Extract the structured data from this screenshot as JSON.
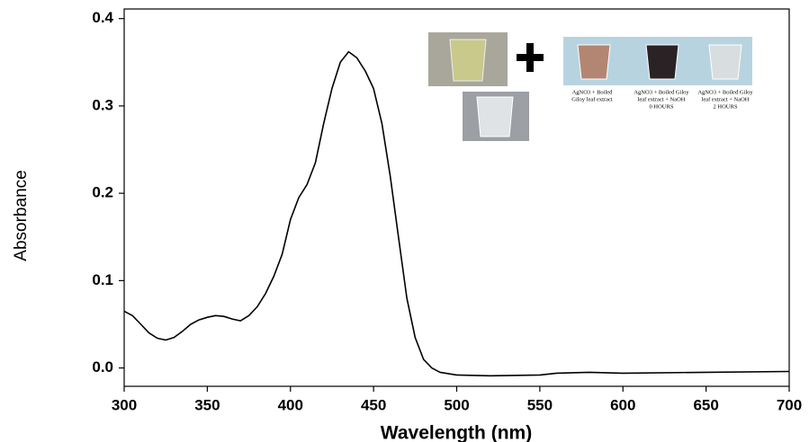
{
  "chart_data": {
    "type": "line",
    "x_label": "Wavelength (nm)",
    "y_label": "Absorbance",
    "x": [
      300,
      305,
      310,
      315,
      320,
      325,
      330,
      335,
      340,
      345,
      350,
      355,
      360,
      365,
      370,
      375,
      380,
      385,
      390,
      395,
      400,
      405,
      410,
      415,
      420,
      425,
      430,
      435,
      440,
      445,
      450,
      455,
      460,
      465,
      470,
      475,
      480,
      485,
      490,
      500,
      520,
      550,
      560,
      580,
      600,
      650,
      700
    ],
    "values": [
      0.065,
      0.06,
      0.05,
      0.04,
      0.034,
      0.032,
      0.035,
      0.042,
      0.05,
      0.055,
      0.058,
      0.06,
      0.059,
      0.056,
      0.054,
      0.06,
      0.07,
      0.085,
      0.105,
      0.13,
      0.17,
      0.195,
      0.21,
      0.235,
      0.28,
      0.32,
      0.35,
      0.362,
      0.355,
      0.34,
      0.32,
      0.28,
      0.22,
      0.15,
      0.08,
      0.035,
      0.01,
      0.0,
      -0.005,
      -0.008,
      -0.009,
      -0.008,
      -0.006,
      -0.005,
      -0.006,
      -0.005,
      -0.004
    ],
    "color": "#000000",
    "xlim": [
      300,
      700
    ],
    "ylim": [
      -0.021,
      0.411
    ],
    "xticks": [
      300,
      350,
      400,
      450,
      500,
      550,
      600,
      650,
      700
    ],
    "yticks": [
      {
        "value": 0,
        "label": "0.0"
      },
      0.1,
      0.2,
      0.3,
      0.4
    ],
    "annotations": [
      [
        "AgNO3 + Boiled",
        "Giloy leaf extract"
      ],
      [
        "AgNO3 + Boiled Giloy",
        "leaf extract + NaOH",
        "0 HOURS"
      ],
      [
        "AgNO3 + Boiled Giloy",
        "leaf extract + NaOH",
        "2 HOURS"
      ]
    ]
  }
}
